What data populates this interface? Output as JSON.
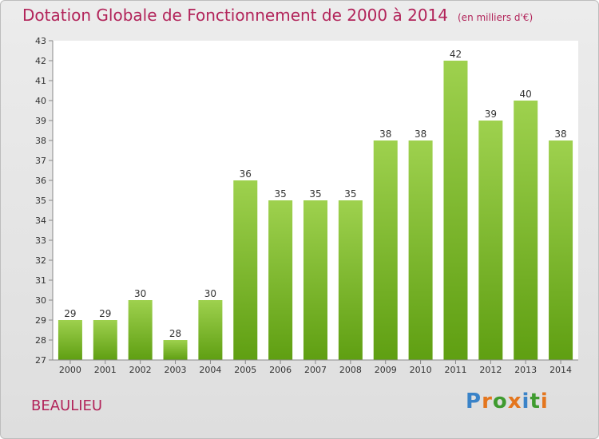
{
  "title": "Dotation Globale de Fonctionnement de 2000 à 2014",
  "subtitle": "(en milliers d'€)",
  "commune": "BEAULIEU",
  "logo": {
    "text": "Proxiti",
    "colors": [
      "#3a83c8",
      "#e4761e",
      "#3f9b2f",
      "#e4761e",
      "#3a83c8",
      "#3f9b2f",
      "#e4761e"
    ]
  },
  "colors": {
    "bar_top": "#9ed14e",
    "bar_bottom": "#5f9f12",
    "title": "#b2245a"
  },
  "chart_data": {
    "type": "bar",
    "title": "Dotation Globale de Fonctionnement de 2000 à 2014",
    "subtitle": "(en milliers d'€)",
    "categories": [
      "2000",
      "2001",
      "2002",
      "2003",
      "2004",
      "2005",
      "2006",
      "2007",
      "2008",
      "2009",
      "2010",
      "2011",
      "2012",
      "2013",
      "2014"
    ],
    "values": [
      29,
      29,
      30,
      28,
      30,
      36,
      35,
      35,
      35,
      38,
      38,
      42,
      39,
      40,
      38
    ],
    "ylim": [
      27,
      43
    ],
    "yticks": [
      27,
      28,
      29,
      30,
      31,
      32,
      33,
      34,
      35,
      36,
      37,
      38,
      39,
      40,
      41,
      42,
      43
    ],
    "grid": false,
    "legend": "none"
  }
}
